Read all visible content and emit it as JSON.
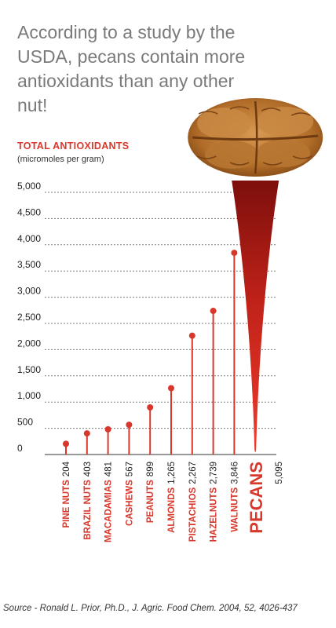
{
  "headline": "According to a study by the USDA, pecans contain more antioxidants than any other nut!",
  "source": "Source - Ronald L. Prior, Ph.D., J. Agric. Food Chem. 2004, 52, 4026-437",
  "colors": {
    "accent": "#d8382c",
    "stem_dark": "#8e1410",
    "text": "#333333",
    "headline": "#7a7a7a",
    "pecan": "#b8742e"
  },
  "chart_data": {
    "type": "bar",
    "title": "TOTAL ANTIOXIDANTS",
    "ylabel": "(micromoles per gram)",
    "ylim": [
      0,
      5000
    ],
    "yticks": [
      "0",
      "500",
      "1,000",
      "1,500",
      "2,000",
      "2,500",
      "3,000",
      "3,500",
      "4,000",
      "4,500",
      "5,000"
    ],
    "ytick_values": [
      0,
      500,
      1000,
      1500,
      2000,
      2500,
      3000,
      3500,
      4000,
      4500,
      5000
    ],
    "grid": true,
    "categories": [
      "PINE NUTS",
      "BRAZIL NUTS",
      "MACADAMIAS",
      "CASHEWS",
      "PEANUTS",
      "ALMONDS",
      "PISTACHIOS",
      "HAZELNUTS",
      "WALNUTS",
      "PECANS"
    ],
    "value_labels": [
      "204",
      "403",
      "481",
      "567",
      "899",
      "1,265",
      "2,267",
      "2,739",
      "3,846",
      "5,095"
    ],
    "values": [
      204,
      403,
      481,
      567,
      899,
      1265,
      2267,
      2739,
      3846,
      5095
    ]
  }
}
